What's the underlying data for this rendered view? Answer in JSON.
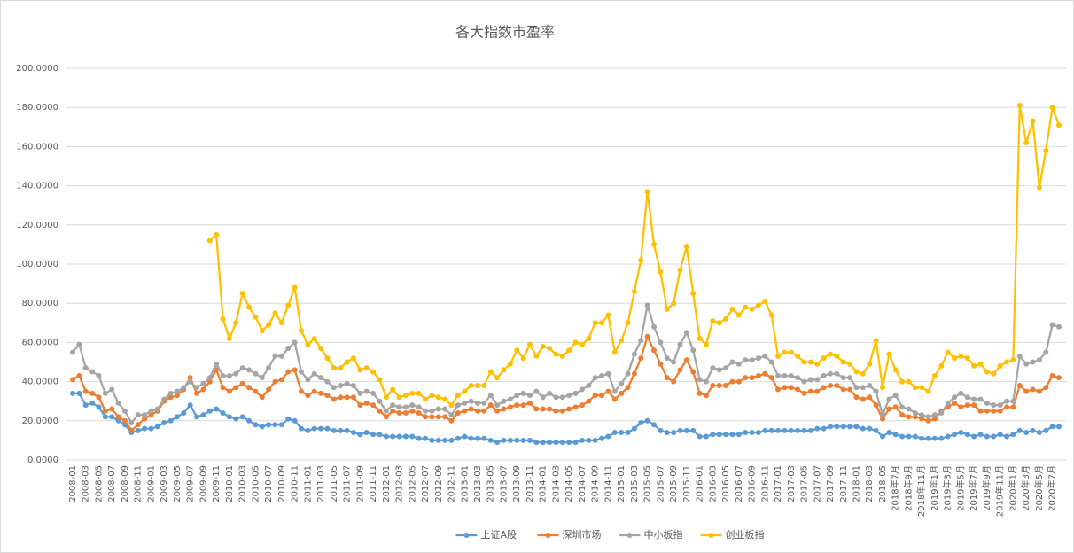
{
  "chart_data": {
    "type": "line",
    "title": "各大指数市盈率",
    "categories": [
      "2008-01",
      null,
      "2008-03",
      null,
      "2008-05",
      null,
      "2008-07",
      null,
      "2008-09",
      null,
      "2008-11",
      null,
      "2009-01",
      null,
      "2009-03",
      null,
      "2009-05",
      null,
      "2009-07",
      null,
      "2009-09",
      null,
      "2009-11",
      null,
      "2010-01",
      null,
      "2010-03",
      null,
      "2010-05",
      null,
      "2010-07",
      null,
      "2010-09",
      null,
      "2010-11",
      null,
      "2011-01",
      null,
      "2011-03",
      null,
      "2011-05",
      null,
      "2011-07",
      null,
      "2011-09",
      null,
      "2011-11",
      null,
      "2012-01",
      null,
      "2012-03",
      null,
      "2012-05",
      null,
      "2012-07",
      null,
      "2012-09",
      null,
      "2012-11",
      null,
      "2013-01",
      null,
      "2013-03",
      null,
      "2013-05",
      null,
      "2013-07",
      null,
      "2013-09",
      null,
      "2013-11",
      null,
      "2014-01",
      null,
      "2014-03",
      null,
      "2014-05",
      null,
      "2014-07",
      null,
      "2014-09",
      null,
      "2014-11",
      null,
      "2015-01",
      null,
      "2015-03",
      null,
      "2015-05",
      null,
      "2015-07",
      null,
      "2015-09",
      null,
      "2015-11",
      null,
      "2016-01",
      null,
      "2016-03",
      null,
      "2016-05",
      null,
      "2016-07",
      null,
      "2016-09",
      null,
      "2016-11",
      null,
      "2017-01",
      null,
      "2017-03",
      null,
      "2017-05",
      null,
      "2017-07",
      null,
      "2017-09",
      null,
      "2017-11",
      null,
      "2018-01",
      null,
      "2018-03",
      null,
      "2018-05",
      null,
      "2018年7月",
      null,
      "2018年9月",
      null,
      "2018年11月",
      null,
      "2019年1月",
      null,
      "2019年3月",
      null,
      "2019年5月",
      null,
      "2019年7月",
      null,
      "2019年9月",
      null,
      "2019年11月",
      null,
      "2020年1月",
      null,
      "2020年3月",
      null,
      "2020年5月",
      null,
      "2020年7月",
      null
    ],
    "series": [
      {
        "name": "上证A股",
        "color": "#5b9bd5",
        "values": [
          34,
          34,
          28,
          29,
          27,
          22,
          22,
          20,
          18,
          14,
          15,
          16,
          16,
          17,
          19,
          20,
          22,
          24,
          28,
          22,
          23,
          25,
          26,
          24,
          22,
          21,
          22,
          20,
          18,
          17,
          18,
          18,
          18,
          21,
          20,
          16,
          15,
          16,
          16,
          16,
          15,
          15,
          15,
          14,
          13,
          14,
          13,
          13,
          12,
          12,
          12,
          12,
          12,
          11,
          11,
          10,
          10,
          10,
          10,
          11,
          12,
          11,
          11,
          11,
          10,
          9,
          10,
          10,
          10,
          10,
          10,
          9,
          9,
          9,
          9,
          9,
          9,
          9,
          10,
          10,
          10,
          11,
          12,
          14,
          14,
          14,
          16,
          19,
          20,
          18,
          15,
          14,
          14,
          15,
          15,
          15,
          12,
          12,
          13,
          13,
          13,
          13,
          13,
          14,
          14,
          14,
          15,
          15,
          15,
          15,
          15,
          15,
          15,
          15,
          16,
          16,
          17,
          17,
          17,
          17,
          17,
          16,
          16,
          15,
          12,
          14,
          13,
          12,
          12,
          12,
          11,
          11,
          11,
          11,
          12,
          13,
          14,
          13,
          12,
          13,
          12,
          12,
          13,
          12,
          13,
          15,
          14,
          15,
          14,
          15,
          17,
          17
        ]
      },
      {
        "name": "深圳市场",
        "color": "#ed7d31",
        "values": [
          41,
          43,
          35,
          34,
          32,
          25,
          26,
          22,
          20,
          15,
          18,
          21,
          23,
          25,
          30,
          32,
          33,
          36,
          42,
          34,
          36,
          40,
          46,
          37,
          35,
          37,
          39,
          37,
          35,
          32,
          36,
          40,
          41,
          45,
          46,
          35,
          33,
          35,
          34,
          33,
          31,
          32,
          32,
          32,
          28,
          29,
          28,
          25,
          22,
          25,
          24,
          24,
          25,
          24,
          22,
          22,
          22,
          22,
          20,
          24,
          25,
          26,
          25,
          25,
          28,
          25,
          26,
          27,
          28,
          28,
          29,
          26,
          26,
          26,
          25,
          25,
          26,
          27,
          28,
          30,
          33,
          33,
          35,
          31,
          34,
          37,
          44,
          52,
          63,
          56,
          49,
          42,
          40,
          46,
          51,
          45,
          34,
          33,
          38,
          38,
          38,
          40,
          40,
          42,
          42,
          43,
          44,
          42,
          36,
          37,
          37,
          36,
          34,
          35,
          35,
          37,
          38,
          38,
          36,
          36,
          32,
          31,
          32,
          28,
          21,
          26,
          27,
          23,
          22,
          22,
          21,
          20,
          21,
          25,
          27,
          29,
          27,
          28,
          28,
          25,
          25,
          25,
          25,
          27,
          27,
          38,
          35,
          36,
          35,
          37,
          43,
          42
        ]
      },
      {
        "name": "中小板指",
        "color": "#a5a5a5",
        "values": [
          55,
          59,
          47,
          45,
          43,
          34,
          36,
          29,
          25,
          19,
          23,
          23,
          25,
          26,
          31,
          34,
          35,
          37,
          40,
          37,
          39,
          42,
          49,
          43,
          43,
          44,
          47,
          46,
          44,
          42,
          47,
          53,
          53,
          57,
          60,
          45,
          41,
          44,
          42,
          40,
          37,
          38,
          39,
          38,
          34,
          35,
          34,
          30,
          25,
          28,
          27,
          27,
          28,
          27,
          25,
          25,
          26,
          26,
          23,
          28,
          29,
          30,
          29,
          29,
          33,
          28,
          30,
          31,
          33,
          34,
          33,
          35,
          32,
          34,
          32,
          32,
          33,
          34,
          36,
          38,
          42,
          43,
          44,
          35,
          39,
          44,
          54,
          61,
          79,
          68,
          60,
          52,
          50,
          59,
          65,
          56,
          41,
          40,
          47,
          46,
          47,
          50,
          49,
          51,
          51,
          52,
          53,
          50,
          43,
          43,
          43,
          42,
          40,
          41,
          41,
          43,
          44,
          44,
          42,
          42,
          37,
          37,
          38,
          35,
          23,
          31,
          33,
          27,
          26,
          24,
          23,
          22,
          23,
          24,
          29,
          32,
          34,
          32,
          31,
          31,
          29,
          28,
          28,
          30,
          30,
          53,
          49,
          50,
          51,
          55,
          69,
          68
        ]
      },
      {
        "name": "创业板指",
        "color": "#ffc000",
        "values": [
          null,
          null,
          null,
          null,
          null,
          null,
          null,
          null,
          null,
          null,
          null,
          null,
          null,
          null,
          null,
          null,
          null,
          null,
          null,
          null,
          null,
          112,
          115,
          72,
          62,
          70,
          85,
          78,
          73,
          66,
          69,
          75,
          70,
          79,
          88,
          66,
          59,
          62,
          57,
          52,
          47,
          47,
          50,
          52,
          46,
          47,
          45,
          41,
          32,
          36,
          32,
          33,
          34,
          34,
          31,
          33,
          32,
          31,
          28,
          33,
          35,
          38,
          38,
          38,
          45,
          42,
          46,
          49,
          56,
          52,
          59,
          53,
          58,
          57,
          54,
          53,
          56,
          60,
          59,
          62,
          70,
          70,
          74,
          55,
          61,
          70,
          86,
          102,
          137,
          110,
          96,
          77,
          80,
          97,
          109,
          85,
          62,
          59,
          71,
          70,
          72,
          77,
          74,
          78,
          77,
          79,
          81,
          74,
          53,
          55,
          55,
          53,
          50,
          50,
          49,
          52,
          54,
          53,
          50,
          49,
          45,
          44,
          49,
          61,
          37,
          54,
          46,
          40,
          40,
          37,
          37,
          35,
          43,
          48,
          55,
          52,
          53,
          52,
          48,
          49,
          45,
          44,
          48,
          50,
          51,
          181,
          162,
          173,
          139,
          158,
          180,
          171
        ]
      }
    ],
    "ylim": [
      0,
      200
    ],
    "yticks": [
      {
        "value": 0,
        "label": "0.0000"
      },
      {
        "value": 20,
        "label": "20.0000"
      },
      {
        "value": 40,
        "label": "40.0000"
      },
      {
        "value": 60,
        "label": "60.0000"
      },
      {
        "value": 80,
        "label": "80.0000"
      },
      {
        "value": 100,
        "label": "100.0000"
      },
      {
        "value": 120,
        "label": "120.0000"
      },
      {
        "value": 140,
        "label": "140.0000"
      },
      {
        "value": 160,
        "label": "160.0000"
      },
      {
        "value": 180,
        "label": "180.0000"
      },
      {
        "value": 200,
        "label": "200.0000"
      }
    ],
    "grid": true,
    "legend": "bottom"
  }
}
